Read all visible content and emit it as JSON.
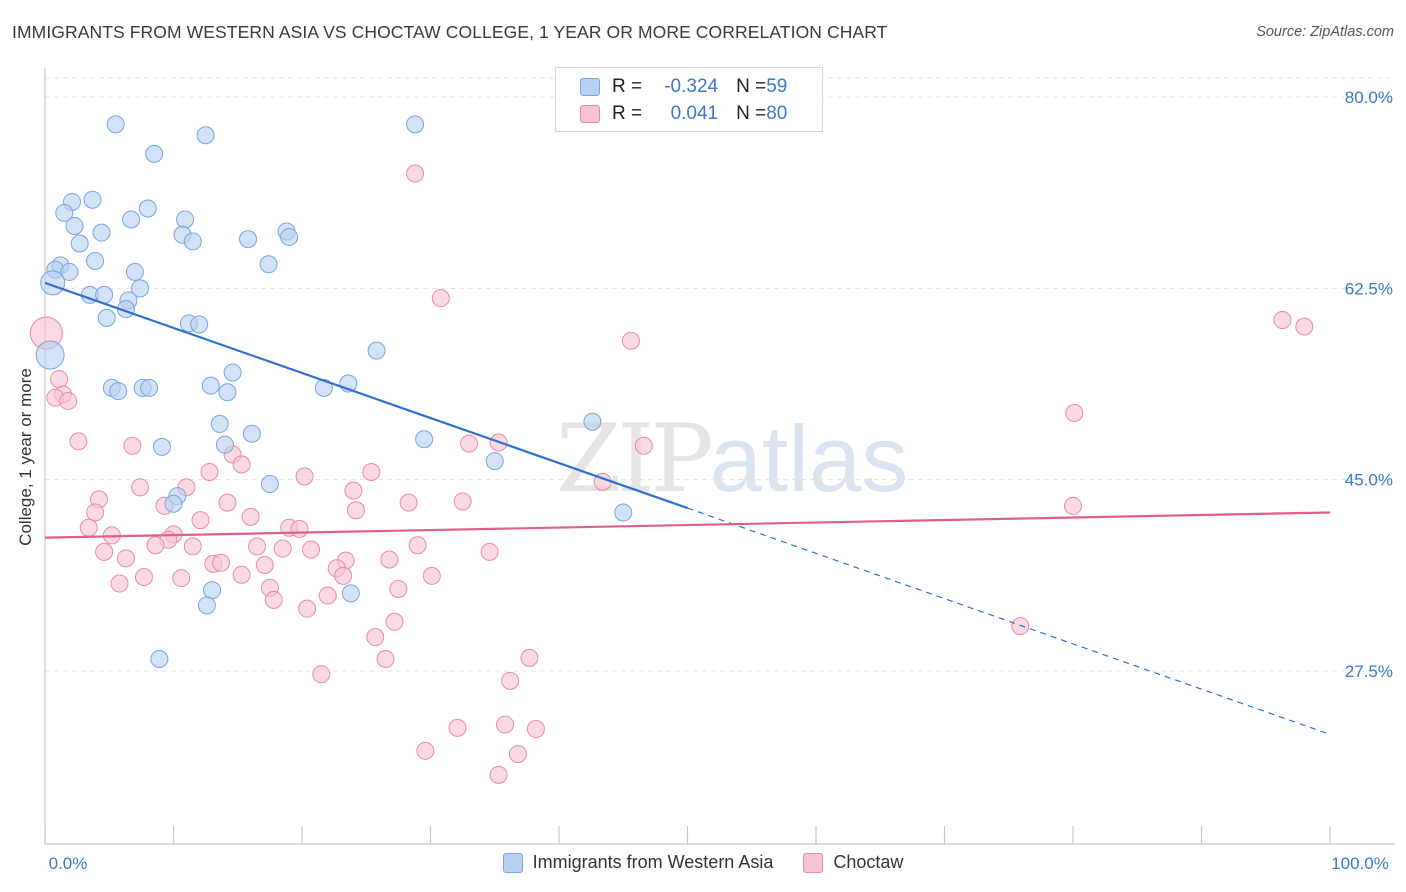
{
  "title": "IMMIGRANTS FROM WESTERN ASIA VS CHOCTAW COLLEGE, 1 YEAR OR MORE CORRELATION CHART",
  "source": "Source: ZipAtlas.com",
  "watermark": {
    "zip": "ZIP",
    "atlas": "atlas"
  },
  "colors": {
    "blue_fill": "#b8d0f2",
    "blue_stroke": "#7aa5df",
    "blue_line": "#2f6fcf",
    "pink_fill": "#f8c4d4",
    "pink_stroke": "#e98aa8",
    "pink_line": "#e0608a",
    "axis_text": "#3a78c9",
    "grid": "#e3e3e3"
  },
  "legend": {
    "rows": [
      {
        "r_label": "R = ",
        "r_value": "-0.324",
        "n_label": "N = ",
        "n_value": "59"
      },
      {
        "r_label": "R = ",
        "r_value": "0.041",
        "n_label": "N = ",
        "n_value": "80"
      }
    ]
  },
  "bottom_legend": [
    "Immigrants from Western Asia",
    "Choctaw"
  ],
  "chart_data": {
    "type": "scatter",
    "title": "IMMIGRANTS FROM WESTERN ASIA VS CHOCTAW COLLEGE, 1 YEAR OR MORE CORRELATION CHART",
    "xlabel": "",
    "ylabel": "College, 1 year or more",
    "xlim": [
      0,
      100
    ],
    "ylim": [
      10,
      85
    ],
    "x_tick_labels": [
      "0.0%",
      "100.0%"
    ],
    "y_ticks": [
      27.5,
      45.0,
      62.5,
      80.0
    ],
    "y_tick_labels": [
      "27.5%",
      "45.0%",
      "62.5%",
      "80.0%"
    ],
    "grid": true,
    "legend_position": "top-center",
    "series": [
      {
        "name": "Immigrants from Western Asia",
        "color": "#b8d0f2",
        "r": -0.324,
        "n": 59,
        "trend": {
          "x0": 0,
          "y0": 63.0,
          "x1": 50,
          "y1": 42.4,
          "dash_to_x": 100,
          "dash_to_y": 21.7
        },
        "points": [
          {
            "x": 5.5,
            "y": 77.5
          },
          {
            "x": 12.5,
            "y": 76.5
          },
          {
            "x": 28.8,
            "y": 77.5
          },
          {
            "x": 8.5,
            "y": 74.8
          },
          {
            "x": 2.1,
            "y": 70.4
          },
          {
            "x": 3.7,
            "y": 70.6
          },
          {
            "x": 1.5,
            "y": 69.4
          },
          {
            "x": 8.0,
            "y": 69.8
          },
          {
            "x": 6.7,
            "y": 68.8
          },
          {
            "x": 10.9,
            "y": 68.8
          },
          {
            "x": 2.3,
            "y": 68.2
          },
          {
            "x": 4.4,
            "y": 67.6
          },
          {
            "x": 10.7,
            "y": 67.4
          },
          {
            "x": 18.8,
            "y": 67.7
          },
          {
            "x": 15.8,
            "y": 67.0
          },
          {
            "x": 19.0,
            "y": 67.2
          },
          {
            "x": 2.7,
            "y": 66.6
          },
          {
            "x": 11.5,
            "y": 66.8
          },
          {
            "x": 3.9,
            "y": 65.0
          },
          {
            "x": 17.4,
            "y": 64.7
          },
          {
            "x": 1.2,
            "y": 64.6
          },
          {
            "x": 0.8,
            "y": 64.2
          },
          {
            "x": 1.9,
            "y": 64.0
          },
          {
            "x": 7.0,
            "y": 64.0
          },
          {
            "x": 0.6,
            "y": 63.0
          },
          {
            "x": 7.4,
            "y": 62.5
          },
          {
            "x": 3.5,
            "y": 61.9
          },
          {
            "x": 4.6,
            "y": 61.9
          },
          {
            "x": 6.5,
            "y": 61.4
          },
          {
            "x": 6.3,
            "y": 60.6
          },
          {
            "x": 4.8,
            "y": 59.8
          },
          {
            "x": 11.2,
            "y": 59.3
          },
          {
            "x": 12.0,
            "y": 59.2
          },
          {
            "x": 0.4,
            "y": 56.4
          },
          {
            "x": 25.8,
            "y": 56.8
          },
          {
            "x": 14.6,
            "y": 54.8
          },
          {
            "x": 5.2,
            "y": 53.4
          },
          {
            "x": 5.7,
            "y": 53.1
          },
          {
            "x": 7.6,
            "y": 53.4
          },
          {
            "x": 8.1,
            "y": 53.4
          },
          {
            "x": 12.9,
            "y": 53.6
          },
          {
            "x": 14.2,
            "y": 53.0
          },
          {
            "x": 21.7,
            "y": 53.4
          },
          {
            "x": 23.6,
            "y": 53.8
          },
          {
            "x": 42.6,
            "y": 50.3
          },
          {
            "x": 13.6,
            "y": 50.1
          },
          {
            "x": 16.1,
            "y": 49.2
          },
          {
            "x": 29.5,
            "y": 48.7
          },
          {
            "x": 9.1,
            "y": 48.0
          },
          {
            "x": 14.0,
            "y": 48.2
          },
          {
            "x": 35.0,
            "y": 46.7
          },
          {
            "x": 17.5,
            "y": 44.6
          },
          {
            "x": 10.3,
            "y": 43.5
          },
          {
            "x": 10.0,
            "y": 42.8
          },
          {
            "x": 13.0,
            "y": 34.9
          },
          {
            "x": 12.6,
            "y": 33.5
          },
          {
            "x": 23.8,
            "y": 34.6
          },
          {
            "x": 8.9,
            "y": 28.6
          },
          {
            "x": 45.0,
            "y": 42.0
          }
        ]
      },
      {
        "name": "Choctaw",
        "color": "#f8c4d4",
        "r": 0.041,
        "n": 80,
        "trend": {
          "x0": 0,
          "y0": 39.7,
          "x1": 100,
          "y1": 42.0
        },
        "points": [
          {
            "x": 0.1,
            "y": 58.4
          },
          {
            "x": 28.8,
            "y": 73.0
          },
          {
            "x": 30.8,
            "y": 61.6
          },
          {
            "x": 45.6,
            "y": 57.7
          },
          {
            "x": 96.3,
            "y": 59.6
          },
          {
            "x": 98.0,
            "y": 59.0
          },
          {
            "x": 80.1,
            "y": 51.1
          },
          {
            "x": 1.1,
            "y": 54.2
          },
          {
            "x": 1.4,
            "y": 52.8
          },
          {
            "x": 0.8,
            "y": 52.5
          },
          {
            "x": 1.8,
            "y": 52.2
          },
          {
            "x": 2.6,
            "y": 48.5
          },
          {
            "x": 6.8,
            "y": 48.1
          },
          {
            "x": 14.6,
            "y": 47.3
          },
          {
            "x": 33.0,
            "y": 48.3
          },
          {
            "x": 35.3,
            "y": 48.4
          },
          {
            "x": 15.3,
            "y": 46.4
          },
          {
            "x": 12.8,
            "y": 45.7
          },
          {
            "x": 25.4,
            "y": 45.7
          },
          {
            "x": 20.2,
            "y": 45.3
          },
          {
            "x": 46.6,
            "y": 48.1
          },
          {
            "x": 43.4,
            "y": 44.8
          },
          {
            "x": 7.4,
            "y": 44.3
          },
          {
            "x": 11.0,
            "y": 44.3
          },
          {
            "x": 24.0,
            "y": 44.0
          },
          {
            "x": 4.2,
            "y": 43.2
          },
          {
            "x": 14.2,
            "y": 42.9
          },
          {
            "x": 28.3,
            "y": 42.9
          },
          {
            "x": 32.5,
            "y": 43.0
          },
          {
            "x": 9.3,
            "y": 42.6
          },
          {
            "x": 24.2,
            "y": 42.2
          },
          {
            "x": 80.0,
            "y": 42.6
          },
          {
            "x": 3.9,
            "y": 42.0
          },
          {
            "x": 12.1,
            "y": 41.3
          },
          {
            "x": 16.0,
            "y": 41.6
          },
          {
            "x": 19.0,
            "y": 40.6
          },
          {
            "x": 19.8,
            "y": 40.5
          },
          {
            "x": 3.4,
            "y": 40.6
          },
          {
            "x": 5.2,
            "y": 39.9
          },
          {
            "x": 10.0,
            "y": 40.0
          },
          {
            "x": 9.6,
            "y": 39.5
          },
          {
            "x": 8.6,
            "y": 39.0
          },
          {
            "x": 11.5,
            "y": 38.9
          },
          {
            "x": 16.5,
            "y": 38.9
          },
          {
            "x": 18.5,
            "y": 38.7
          },
          {
            "x": 20.7,
            "y": 38.6
          },
          {
            "x": 29.0,
            "y": 39.0
          },
          {
            "x": 34.6,
            "y": 38.4
          },
          {
            "x": 4.6,
            "y": 38.4
          },
          {
            "x": 6.3,
            "y": 37.8
          },
          {
            "x": 13.1,
            "y": 37.3
          },
          {
            "x": 13.7,
            "y": 37.4
          },
          {
            "x": 17.1,
            "y": 37.2
          },
          {
            "x": 23.4,
            "y": 37.6
          },
          {
            "x": 26.8,
            "y": 37.7
          },
          {
            "x": 22.7,
            "y": 36.9
          },
          {
            "x": 30.1,
            "y": 36.2
          },
          {
            "x": 7.7,
            "y": 36.1
          },
          {
            "x": 10.6,
            "y": 36.0
          },
          {
            "x": 15.3,
            "y": 36.3
          },
          {
            "x": 23.2,
            "y": 36.2
          },
          {
            "x": 5.8,
            "y": 35.5
          },
          {
            "x": 17.5,
            "y": 35.1
          },
          {
            "x": 27.5,
            "y": 35.0
          },
          {
            "x": 22.0,
            "y": 34.4
          },
          {
            "x": 17.8,
            "y": 34.0
          },
          {
            "x": 20.4,
            "y": 33.2
          },
          {
            "x": 27.2,
            "y": 32.0
          },
          {
            "x": 75.9,
            "y": 31.6
          },
          {
            "x": 25.7,
            "y": 30.6
          },
          {
            "x": 26.5,
            "y": 28.6
          },
          {
            "x": 37.7,
            "y": 28.7
          },
          {
            "x": 21.5,
            "y": 27.2
          },
          {
            "x": 36.2,
            "y": 26.6
          },
          {
            "x": 32.1,
            "y": 22.3
          },
          {
            "x": 35.8,
            "y": 22.6
          },
          {
            "x": 38.2,
            "y": 22.2
          },
          {
            "x": 29.6,
            "y": 20.2
          },
          {
            "x": 36.8,
            "y": 19.9
          },
          {
            "x": 35.3,
            "y": 18.0
          }
        ]
      }
    ]
  }
}
